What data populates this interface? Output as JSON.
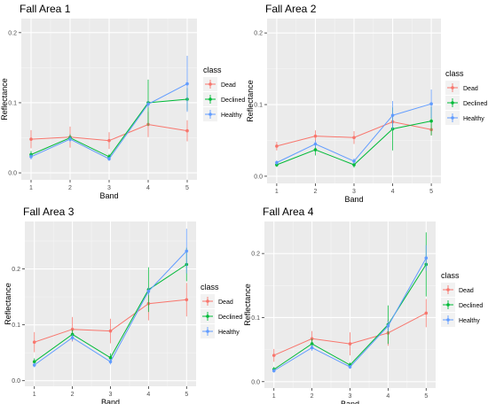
{
  "chart_data": [
    {
      "type": "line",
      "title": "Fall Area 1",
      "xlabel": "Band",
      "ylabel": "Reflectance",
      "x": [
        1,
        2,
        3,
        4,
        5
      ],
      "ylim": [
        -0.01,
        0.22
      ],
      "yticks": [
        0.0,
        0.1,
        0.2
      ],
      "ytick_labels": [
        "0.0",
        "0.1",
        "0.2"
      ],
      "legend_title": "class",
      "legend_position": "right",
      "grid": true,
      "series": [
        {
          "name": "Dead",
          "color": "#F8766D",
          "values": [
            0.048,
            0.051,
            0.046,
            0.069,
            0.06
          ],
          "err": [
            0.013,
            0.015,
            0.012,
            0.018,
            0.015
          ]
        },
        {
          "name": "Declined",
          "color": "#00BA38",
          "values": [
            0.026,
            0.05,
            0.023,
            0.1,
            0.105
          ],
          "err": [
            0.005,
            0.005,
            0.004,
            0.033,
            0.016
          ]
        },
        {
          "name": "Healthy",
          "color": "#619CFF",
          "values": [
            0.023,
            0.048,
            0.02,
            0.098,
            0.127
          ],
          "err": [
            0.004,
            0.004,
            0.003,
            0.005,
            0.04
          ]
        }
      ]
    },
    {
      "type": "line",
      "title": "Fall Area 2",
      "xlabel": "Band",
      "ylabel": "Reflectance",
      "x": [
        1,
        2,
        3,
        4,
        5
      ],
      "ylim": [
        -0.01,
        0.22
      ],
      "yticks": [
        0.0,
        0.1,
        0.2
      ],
      "ytick_labels": [
        "0.0",
        "0.1",
        "0.2"
      ],
      "legend_title": "class",
      "legend_position": "right",
      "grid": true,
      "series": [
        {
          "name": "Dead",
          "color": "#F8766D",
          "values": [
            0.042,
            0.056,
            0.054,
            0.076,
            0.065
          ],
          "err": [
            0.006,
            0.008,
            0.009,
            0.01,
            0.008
          ]
        },
        {
          "name": "Declined",
          "color": "#00BA38",
          "values": [
            0.016,
            0.037,
            0.016,
            0.066,
            0.077
          ],
          "err": [
            0.003,
            0.008,
            0.004,
            0.03,
            0.02
          ]
        },
        {
          "name": "Healthy",
          "color": "#619CFF",
          "values": [
            0.019,
            0.045,
            0.021,
            0.085,
            0.101
          ],
          "err": [
            0.003,
            0.005,
            0.004,
            0.02,
            0.02
          ]
        }
      ]
    },
    {
      "type": "line",
      "title": "Fall Area 3",
      "xlabel": "Band",
      "ylabel": "Reflectance",
      "x": [
        1,
        2,
        3,
        4,
        5
      ],
      "ylim": [
        -0.01,
        0.285
      ],
      "yticks": [
        0.0,
        0.1,
        0.2
      ],
      "ytick_labels": [
        "0.0",
        "0.1",
        "0.2"
      ],
      "legend_title": "class",
      "legend_position": "right",
      "grid": true,
      "series": [
        {
          "name": "Dead",
          "color": "#F8766D",
          "values": [
            0.069,
            0.092,
            0.089,
            0.138,
            0.145
          ],
          "err": [
            0.018,
            0.022,
            0.022,
            0.03,
            0.03
          ]
        },
        {
          "name": "Declined",
          "color": "#00BA38",
          "values": [
            0.034,
            0.083,
            0.041,
            0.163,
            0.208
          ],
          "err": [
            0.006,
            0.008,
            0.008,
            0.04,
            0.03
          ]
        },
        {
          "name": "Healthy",
          "color": "#619CFF",
          "values": [
            0.028,
            0.077,
            0.034,
            0.16,
            0.232
          ],
          "err": [
            0.004,
            0.006,
            0.005,
            0.007,
            0.04
          ]
        }
      ]
    },
    {
      "type": "line",
      "title": "Fall Area 4",
      "xlabel": "Band",
      "ylabel": "Reflectance",
      "x": [
        1,
        2,
        3,
        4,
        5
      ],
      "ylim": [
        -0.01,
        0.25
      ],
      "yticks": [
        0.0,
        0.1,
        0.2
      ],
      "ytick_labels": [
        "0.0",
        "0.1",
        "0.2"
      ],
      "legend_title": "class",
      "legend_position": "right",
      "grid": true,
      "series": [
        {
          "name": "Dead",
          "color": "#F8766D",
          "values": [
            0.041,
            0.067,
            0.059,
            0.076,
            0.107
          ],
          "err": [
            0.01,
            0.012,
            0.018,
            0.02,
            0.022
          ]
        },
        {
          "name": "Declined",
          "color": "#00BA38",
          "values": [
            0.019,
            0.059,
            0.026,
            0.089,
            0.183
          ],
          "err": [
            0.004,
            0.008,
            0.004,
            0.03,
            0.05
          ]
        },
        {
          "name": "Healthy",
          "color": "#619CFF",
          "values": [
            0.017,
            0.053,
            0.023,
            0.087,
            0.193
          ],
          "err": [
            0.003,
            0.005,
            0.003,
            0.008,
            0.02
          ]
        }
      ]
    }
  ]
}
